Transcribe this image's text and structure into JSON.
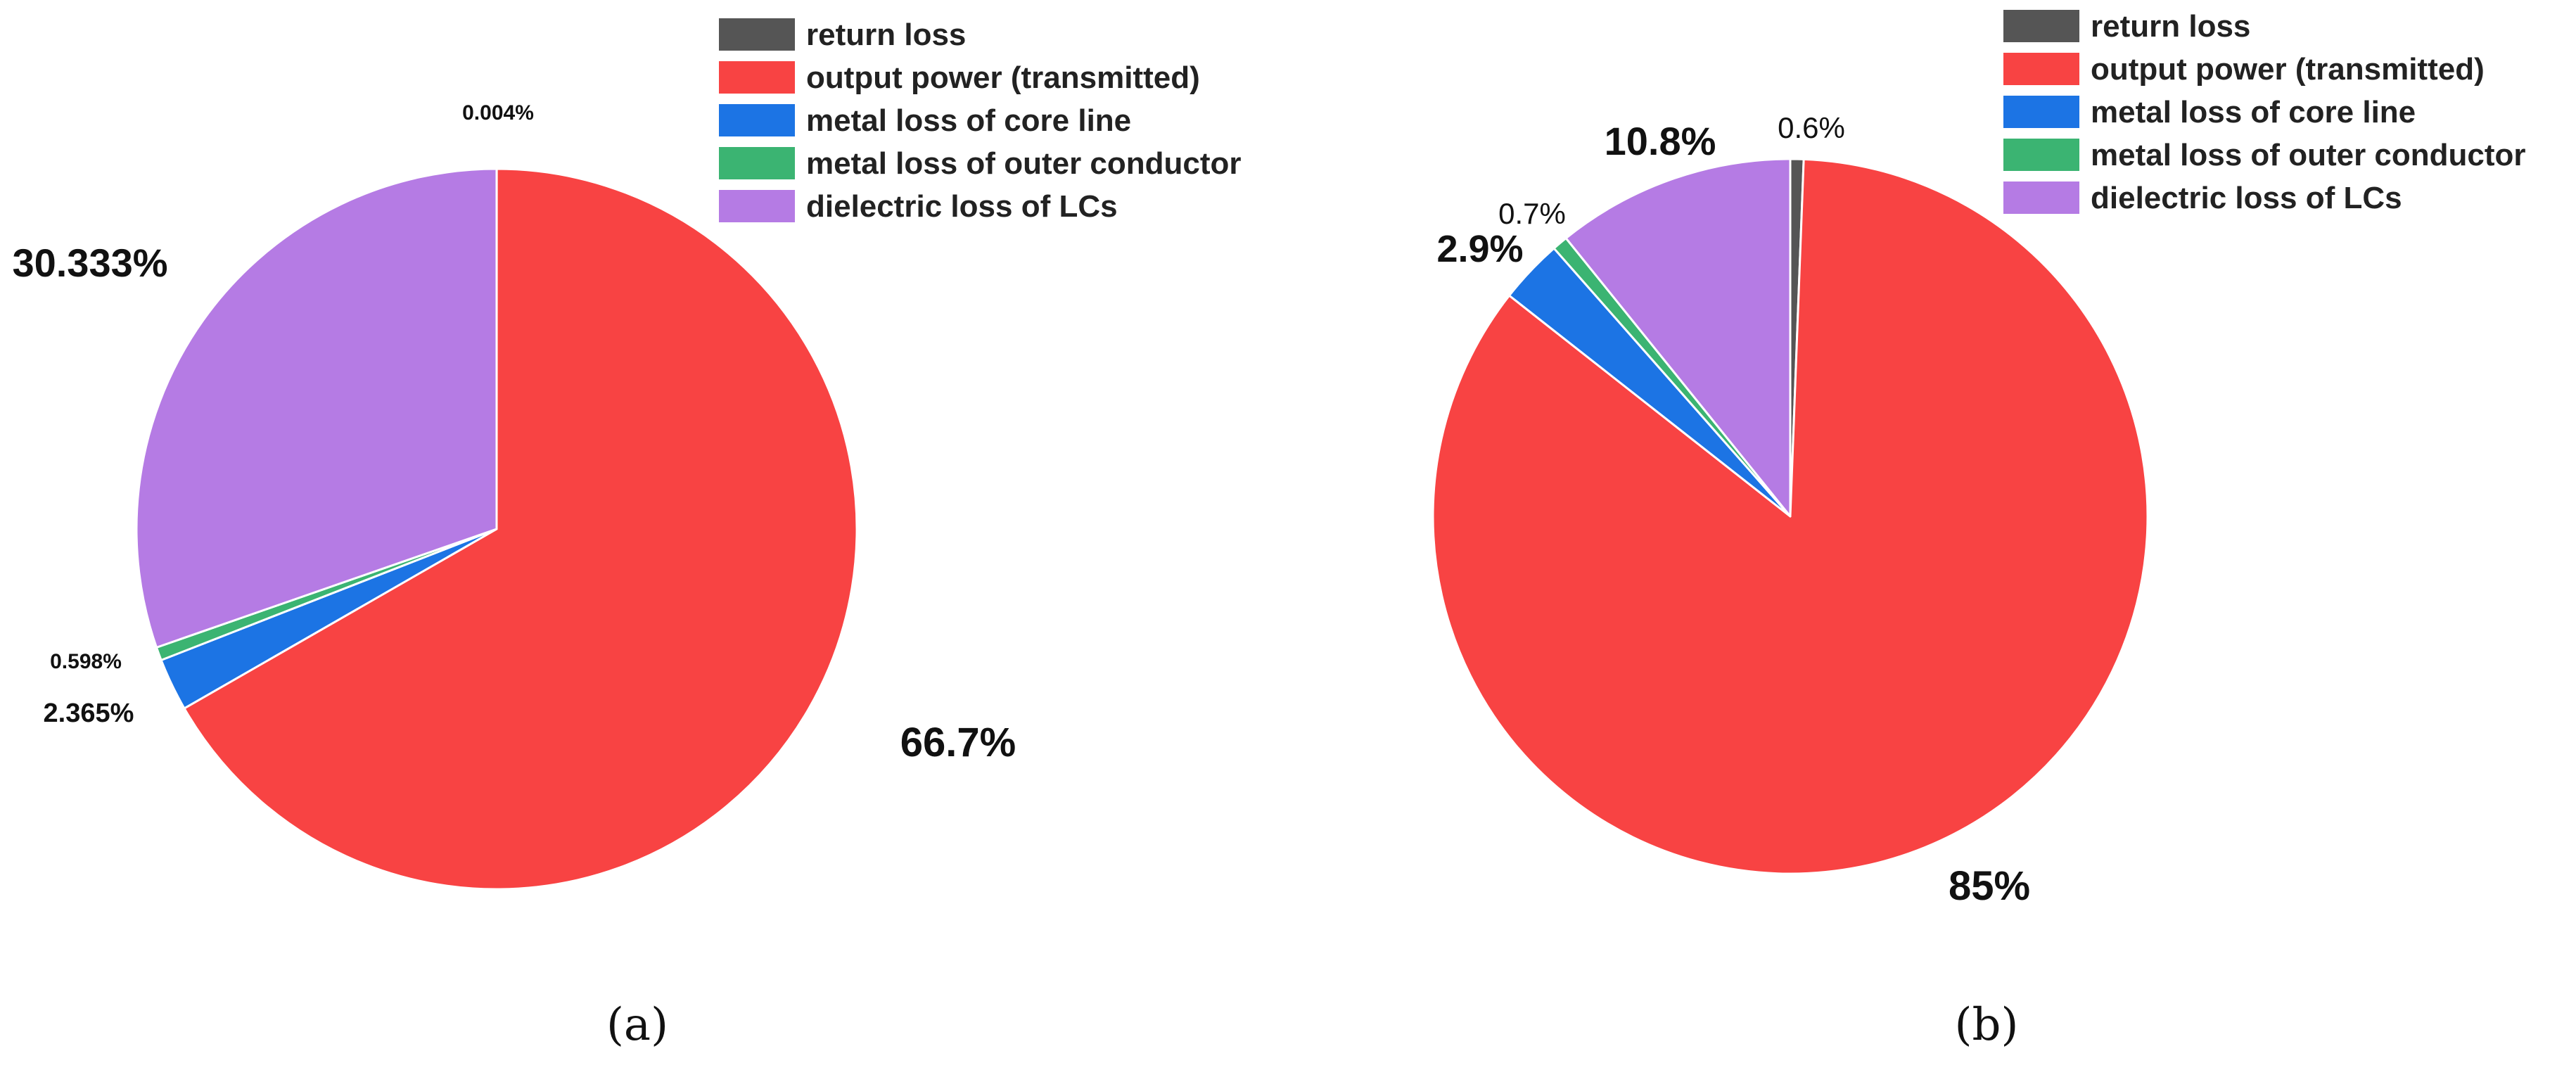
{
  "chart_data": [
    {
      "type": "pie",
      "panel_label": "(a)",
      "legend": [
        {
          "label": "return loss",
          "color": "#555555"
        },
        {
          "label": "output power (transmitted)",
          "color": "#f84343"
        },
        {
          "label": "metal loss of core line",
          "color": "#1c74e4"
        },
        {
          "label": "metal loss of outer conductor",
          "color": "#3bb472"
        },
        {
          "label": "dielectric loss of LCs",
          "color": "#b57be4"
        }
      ],
      "slices": [
        {
          "name": "return loss",
          "value": 0.004,
          "label": "0.004%",
          "color": "#555555"
        },
        {
          "name": "output power (transmitted)",
          "value": 66.7,
          "label": "66.7%",
          "color": "#f84343"
        },
        {
          "name": "metal loss of core line",
          "value": 2.365,
          "label": "2.365%",
          "color": "#1c74e4"
        },
        {
          "name": "metal loss of outer conductor",
          "value": 0.598,
          "label": "0.598%",
          "color": "#3bb472"
        },
        {
          "name": "dielectric loss of LCs",
          "value": 30.333,
          "label": "30.333%",
          "color": "#b57be4"
        }
      ],
      "start_angle": "12 o'clock",
      "direction": "clockwise",
      "legend_position": "top-right"
    },
    {
      "type": "pie",
      "panel_label": "(b)",
      "legend": [
        {
          "label": "return loss",
          "color": "#555555"
        },
        {
          "label": "output power (transmitted)",
          "color": "#f84343"
        },
        {
          "label": "metal loss of core line",
          "color": "#1c74e4"
        },
        {
          "label": "metal loss of outer conductor",
          "color": "#3bb472"
        },
        {
          "label": "dielectric loss of LCs",
          "color": "#b57be4"
        }
      ],
      "slices": [
        {
          "name": "return loss",
          "value": 0.6,
          "label": "0.6%",
          "color": "#555555"
        },
        {
          "name": "output power (transmitted)",
          "value": 85,
          "label": "85%",
          "color": "#f84343"
        },
        {
          "name": "metal loss of core line",
          "value": 2.9,
          "label": "2.9%",
          "color": "#1c74e4"
        },
        {
          "name": "metal loss of outer conductor",
          "value": 0.7,
          "label": "0.7%",
          "color": "#3bb472"
        },
        {
          "name": "dielectric loss of LCs",
          "value": 10.8,
          "label": "10.8%",
          "color": "#b57be4"
        }
      ],
      "start_angle": "12 o'clock",
      "direction": "clockwise",
      "legend_position": "top-right"
    }
  ]
}
